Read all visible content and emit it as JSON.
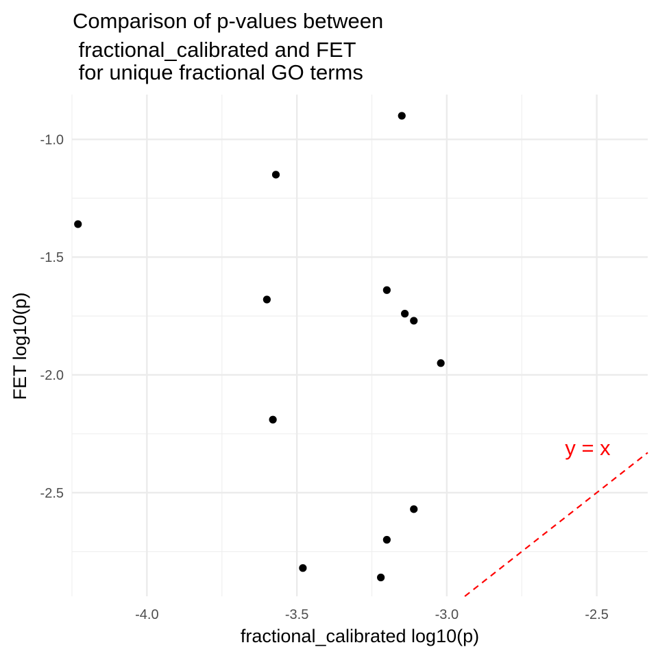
{
  "chart_data": {
    "type": "scatter",
    "title_lines": [
      "Comparison of p-values between",
      " fractional_calibrated and FET",
      " for unique fractional GO terms"
    ],
    "xlabel": "fractional_calibrated log10(p)",
    "ylabel": "FET log10(p)",
    "xlim": [
      -4.25,
      -2.33
    ],
    "ylim": [
      -2.94,
      -0.81
    ],
    "x_ticks": [
      -4.0,
      -3.5,
      -3.0,
      -2.5
    ],
    "x_tick_labels": [
      "-4.0",
      "-3.5",
      "-3.0",
      "-2.5"
    ],
    "y_ticks": [
      -1.0,
      -1.5,
      -2.0,
      -2.5
    ],
    "y_tick_labels": [
      "-1.0",
      "-1.5",
      "-2.0",
      "-2.5"
    ],
    "x_minor": [
      -4.25,
      -3.75,
      -3.25,
      -2.75
    ],
    "y_minor": [
      -1.25,
      -1.75,
      -2.25,
      -2.75
    ],
    "grid": true,
    "points": [
      {
        "x": -3.15,
        "y": -0.9
      },
      {
        "x": -3.57,
        "y": -1.15
      },
      {
        "x": -4.23,
        "y": -1.36
      },
      {
        "x": -3.6,
        "y": -1.68
      },
      {
        "x": -3.2,
        "y": -1.64
      },
      {
        "x": -3.14,
        "y": -1.74
      },
      {
        "x": -3.11,
        "y": -1.77
      },
      {
        "x": -3.02,
        "y": -1.95
      },
      {
        "x": -3.58,
        "y": -2.19
      },
      {
        "x": -3.11,
        "y": -2.57
      },
      {
        "x": -3.2,
        "y": -2.7
      },
      {
        "x": -3.48,
        "y": -2.82
      },
      {
        "x": -3.22,
        "y": -2.86
      }
    ],
    "reference_line": {
      "label": "y = x",
      "slope": 1,
      "intercept": 0,
      "color": "#ff0000",
      "style": "dashed"
    },
    "point_color": "#000000"
  }
}
